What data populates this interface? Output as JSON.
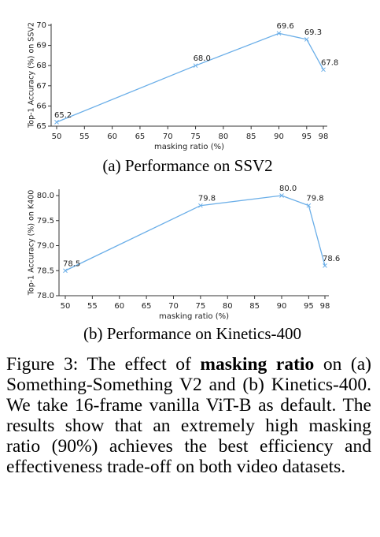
{
  "chart_data": [
    {
      "type": "line",
      "y_label": "Top-1 Accuracy (%) on SSV2",
      "x_label": "masking ratio (%)",
      "caption": "(a) Performance on SSV2",
      "x": [
        50,
        75,
        90,
        95,
        98
      ],
      "values": [
        65.2,
        68.0,
        69.6,
        69.3,
        67.8
      ],
      "value_labels": [
        "65.2",
        "68.0",
        "69.6",
        "69.3",
        "67.8"
      ],
      "color": "#6aaee8",
      "xlim": [
        50,
        98
      ],
      "xticks": [
        50,
        55,
        60,
        65,
        70,
        75,
        80,
        85,
        90,
        95,
        98
      ],
      "ylim": [
        65,
        70
      ],
      "yticks": [
        65,
        66,
        67,
        68,
        69,
        70
      ]
    },
    {
      "type": "line",
      "y_label": "Top-1 Accuracy (%) on K400",
      "x_label": "masking ratio (%)",
      "caption": "(b) Performance on Kinetics-400",
      "x": [
        50,
        75,
        90,
        95,
        98
      ],
      "values": [
        78.5,
        79.8,
        80.0,
        79.8,
        78.6
      ],
      "value_labels": [
        "78.5",
        "79.8",
        "80.0",
        "79.8",
        "78.6"
      ],
      "color": "#6aaee8",
      "xlim": [
        50,
        98
      ],
      "xticks": [
        50,
        55,
        60,
        65,
        70,
        75,
        80,
        85,
        90,
        95,
        98
      ],
      "ylim": [
        78,
        80.1
      ],
      "yticks": [
        {
          "value": 78,
          "label": "78.0"
        },
        78.5,
        {
          "value": 79,
          "label": "79.0"
        },
        79.5,
        {
          "value": 80,
          "label": "80.0"
        }
      ]
    }
  ],
  "figure_caption": {
    "label": "Figure 3:",
    "before": "The effect of",
    "bold": "masking ratio",
    "after": "on (a) Something-Something V2 and (b) Kinetics-400. We take 16-frame vanilla ViT-B as default. The results show that an extremely high masking ratio (90%) achieves the best efficiency and effectiveness trade-off on both video datasets."
  }
}
